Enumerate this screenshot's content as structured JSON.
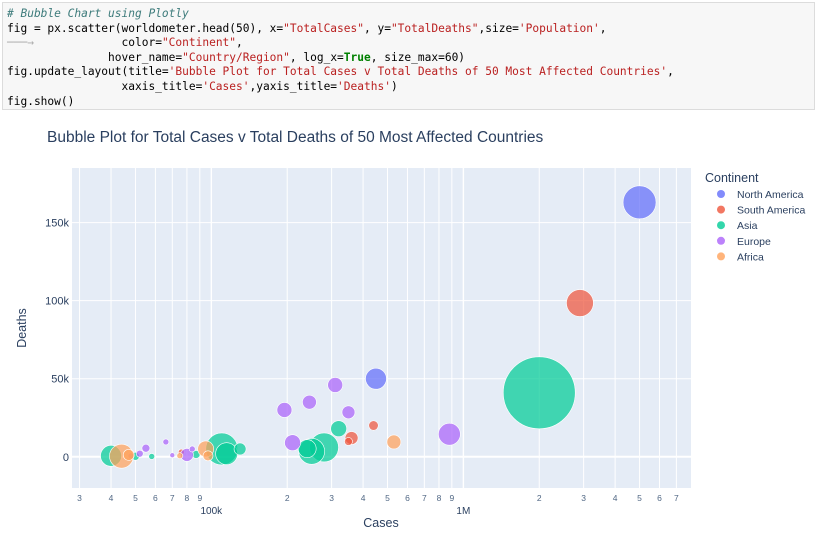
{
  "code_lines": [
    "# Bubble Chart using Plotly",
    "fig = px.scatter(worldometer.head(50), x=\"TotalCases\", y=\"TotalDeaths\",size='Population',",
    "                 color=\"Continent\",",
    "               hover_name=\"Country/Region\", log_x=True, size_max=60)",
    "fig.update_layout(title='Bubble Plot for Total Cases v Total Deaths of 50 Most Affected Countries',",
    "                 xaxis_title='Cases',yaxis_title='Deaths')",
    "fig.show()"
  ],
  "chart_data": {
    "type": "scatter",
    "title": "Bubble Plot for Total Cases v Total Deaths of 50 Most Affected Countries",
    "xlabel": "Cases",
    "ylabel": "Deaths",
    "x_scale": "log",
    "xlim": [
      28000,
      8000000
    ],
    "ylim": [
      -20000,
      185000
    ],
    "x_ticks": [
      {
        "v": 30000,
        "label": "3"
      },
      {
        "v": 40000,
        "label": "4"
      },
      {
        "v": 50000,
        "label": "5"
      },
      {
        "v": 60000,
        "label": "6"
      },
      {
        "v": 70000,
        "label": "7"
      },
      {
        "v": 80000,
        "label": "8"
      },
      {
        "v": 90000,
        "label": "9"
      },
      {
        "v": 100000,
        "label": "100k"
      },
      {
        "v": 200000,
        "label": "2"
      },
      {
        "v": 300000,
        "label": "3"
      },
      {
        "v": 400000,
        "label": "4"
      },
      {
        "v": 500000,
        "label": "5"
      },
      {
        "v": 600000,
        "label": "6"
      },
      {
        "v": 700000,
        "label": "7"
      },
      {
        "v": 800000,
        "label": "8"
      },
      {
        "v": 900000,
        "label": "9"
      },
      {
        "v": 1000000,
        "label": "1M"
      },
      {
        "v": 2000000,
        "label": "2"
      },
      {
        "v": 3000000,
        "label": "3"
      },
      {
        "v": 4000000,
        "label": "4"
      },
      {
        "v": 5000000,
        "label": "5"
      },
      {
        "v": 6000000,
        "label": "6"
      },
      {
        "v": 7000000,
        "label": "7"
      }
    ],
    "y_ticks": [
      {
        "v": 0,
        "label": "0"
      },
      {
        "v": 50000,
        "label": "50k"
      },
      {
        "v": 100000,
        "label": "100k"
      },
      {
        "v": 150000,
        "label": "150k"
      }
    ],
    "legend_title": "Continent",
    "legend_position": "right",
    "grid": true,
    "series": [
      {
        "name": "North America",
        "color": "#636efa",
        "points": [
          {
            "x": 5000000,
            "y": 163000,
            "size": 16.5
          },
          {
            "x": 450000,
            "y": 50000,
            "size": 10.5
          }
        ]
      },
      {
        "name": "South America",
        "color": "#ef553b",
        "points": [
          {
            "x": 2900000,
            "y": 98500,
            "size": 13.5
          },
          {
            "x": 360000,
            "y": 12000,
            "size": 6.5
          },
          {
            "x": 440000,
            "y": 20000,
            "size": 4.8
          },
          {
            "x": 350000,
            "y": 9800,
            "size": 4.0
          },
          {
            "x": 76000,
            "y": 3000,
            "size": 3.0
          }
        ]
      },
      {
        "name": "Asia",
        "color": "#00cc96",
        "points": [
          {
            "x": 2000000,
            "y": 41000,
            "size": 36.0
          },
          {
            "x": 110000,
            "y": 5000,
            "size": 16.0
          },
          {
            "x": 115000,
            "y": 2000,
            "size": 11.0
          },
          {
            "x": 280000,
            "y": 6000,
            "size": 14.5
          },
          {
            "x": 250000,
            "y": 3500,
            "size": 13.0
          },
          {
            "x": 240000,
            "y": 5200,
            "size": 9.0
          },
          {
            "x": 320000,
            "y": 18000,
            "size": 8.0
          },
          {
            "x": 40000,
            "y": 600,
            "size": 10.5
          },
          {
            "x": 130000,
            "y": 5000,
            "size": 6.0
          },
          {
            "x": 50000,
            "y": 300,
            "size": 4.0
          },
          {
            "x": 58000,
            "y": 200,
            "size": 3.0
          },
          {
            "x": 87000,
            "y": 1500,
            "size": 4.0
          }
        ]
      },
      {
        "name": "Europe",
        "color": "#ab63fa",
        "points": [
          {
            "x": 880000,
            "y": 14500,
            "size": 11.0
          },
          {
            "x": 310000,
            "y": 46000,
            "size": 7.5
          },
          {
            "x": 245000,
            "y": 35000,
            "size": 7.0
          },
          {
            "x": 195000,
            "y": 30000,
            "size": 7.5
          },
          {
            "x": 350000,
            "y": 28500,
            "size": 6.5
          },
          {
            "x": 210000,
            "y": 9000,
            "size": 8.0
          },
          {
            "x": 80000,
            "y": 1200,
            "size": 6.5
          },
          {
            "x": 55000,
            "y": 5500,
            "size": 4.0
          },
          {
            "x": 66000,
            "y": 9500,
            "size": 3.0
          },
          {
            "x": 52000,
            "y": 2000,
            "size": 3.5
          },
          {
            "x": 70000,
            "y": 1000,
            "size": 2.5
          },
          {
            "x": 48000,
            "y": 600,
            "size": 3.0
          },
          {
            "x": 84000,
            "y": 5000,
            "size": 3.0
          }
        ]
      },
      {
        "name": "Africa",
        "color": "#ffa15a",
        "points": [
          {
            "x": 44000,
            "y": 400,
            "size": 12.0
          },
          {
            "x": 95000,
            "y": 5000,
            "size": 8.0
          },
          {
            "x": 530000,
            "y": 9500,
            "size": 7.0
          },
          {
            "x": 47000,
            "y": 1200,
            "size": 5.5
          },
          {
            "x": 97000,
            "y": 600,
            "size": 5.0
          },
          {
            "x": 75000,
            "y": 700,
            "size": 3.0
          }
        ]
      }
    ]
  }
}
